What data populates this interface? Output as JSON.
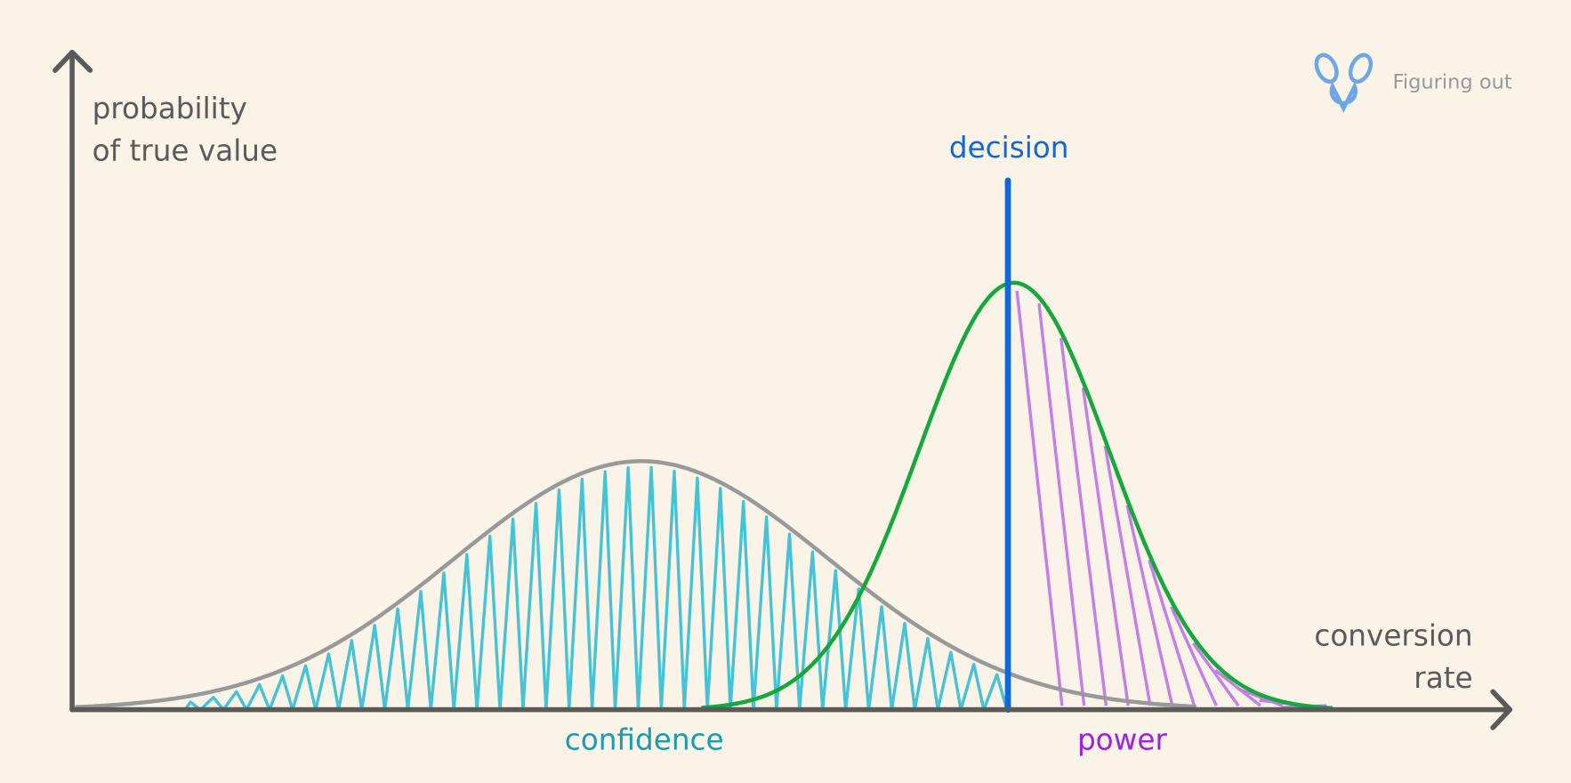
{
  "logo": {
    "text": "Figuring out"
  },
  "axes": {
    "y_label": [
      "probability",
      "of true value"
    ],
    "x_label": [
      "conversion",
      "rate"
    ]
  },
  "labels": {
    "decision": "decision",
    "confidence": "confidence",
    "power": "power"
  }
}
